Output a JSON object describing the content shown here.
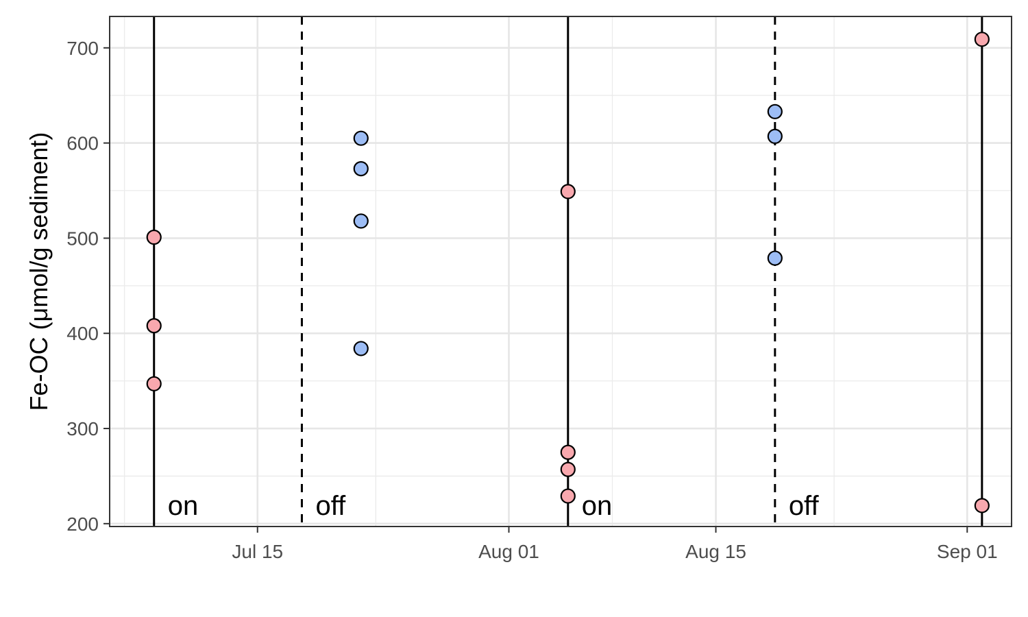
{
  "chart_data": {
    "type": "scatter",
    "title": "",
    "xlabel": "",
    "ylabel": "Fe-OC (μmol/g sediment)",
    "x_ticks": [
      {
        "label": "Jul 15",
        "date": "2021-07-15"
      },
      {
        "label": "Aug 01",
        "date": "2021-08-01"
      },
      {
        "label": "Aug 15",
        "date": "2021-08-15"
      },
      {
        "label": "Sep 01",
        "date": "2021-09-01"
      }
    ],
    "xlim": [
      "2021-07-05",
      "2021-09-04"
    ],
    "ylim": [
      197,
      733
    ],
    "y_ticks": [
      200,
      300,
      400,
      500,
      600,
      700
    ],
    "grid": true,
    "vlines": [
      {
        "date": "2021-07-08",
        "style": "solid",
        "label": "on"
      },
      {
        "date": "2021-07-18",
        "style": "dashed",
        "label": "off"
      },
      {
        "date": "2021-08-05",
        "style": "solid",
        "label": "on"
      },
      {
        "date": "2021-08-19",
        "style": "dashed",
        "label": "off"
      },
      {
        "date": "2021-09-02",
        "style": "solid",
        "label": ""
      }
    ],
    "series": [
      {
        "color": "#f8a8ae",
        "points": [
          {
            "x": "2021-07-08",
            "y": 501
          },
          {
            "x": "2021-07-08",
            "y": 408
          },
          {
            "x": "2021-07-08",
            "y": 347
          },
          {
            "x": "2021-08-05",
            "y": 549
          },
          {
            "x": "2021-08-05",
            "y": 275
          },
          {
            "x": "2021-08-05",
            "y": 257
          },
          {
            "x": "2021-08-05",
            "y": 229
          },
          {
            "x": "2021-09-02",
            "y": 709
          },
          {
            "x": "2021-09-02",
            "y": 219
          }
        ]
      },
      {
        "color": "#9dbdf5",
        "points": [
          {
            "x": "2021-07-22",
            "y": 605
          },
          {
            "x": "2021-07-22",
            "y": 573
          },
          {
            "x": "2021-07-22",
            "y": 518
          },
          {
            "x": "2021-07-22",
            "y": 384
          },
          {
            "x": "2021-08-19",
            "y": 633
          },
          {
            "x": "2021-08-19",
            "y": 607
          },
          {
            "x": "2021-08-19",
            "y": 479
          }
        ]
      }
    ]
  }
}
